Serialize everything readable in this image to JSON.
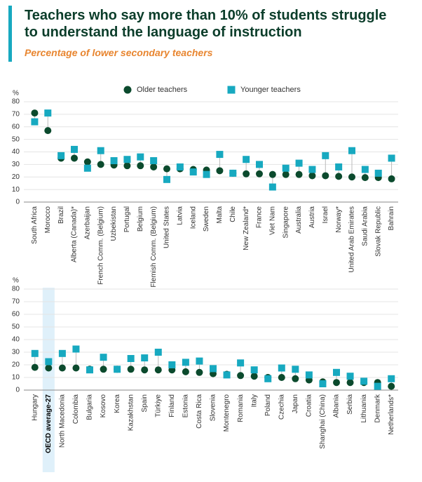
{
  "header": {
    "title": "Teachers who say more than 10% of students struggle to understand the language of instruction",
    "subtitle": "Percentage of lower secondary teachers"
  },
  "chart_data": [
    {
      "type": "dot",
      "ylabel": "%",
      "ylim": [
        0,
        80
      ],
      "yticks": [
        0,
        10,
        20,
        30,
        40,
        50,
        60,
        70,
        80
      ],
      "grid": true,
      "legend": "top",
      "categories": [
        "South Africa",
        "Morocco",
        "Brazil",
        "Alberta (Canada)*",
        "Azerbaijan",
        "French Comm. (Belgium)",
        "Uzbekistan",
        "Portugal",
        "Belgium",
        "Flemish Comm. (Belgium)",
        "United States",
        "Latvia",
        "Iceland",
        "Sweden",
        "Malta",
        "Chile",
        "New Zealand*",
        "France",
        "Viet Nam",
        "Singapore",
        "Australia",
        "Austria",
        "Israel",
        "Norway*",
        "United Arab Emirates",
        "Saudi Arabia",
        "Slovak Republic",
        "Bahrain"
      ],
      "series": [
        {
          "name": "Older teachers",
          "color": "#0b4a2d",
          "values": [
            71,
            57,
            35,
            35,
            32,
            30,
            29.5,
            29,
            29,
            28,
            26.5,
            26.5,
            26,
            25.5,
            25,
            23,
            22.5,
            22.5,
            22,
            22,
            22,
            21,
            21,
            20.5,
            20,
            19.5,
            19.5,
            18.5
          ]
        },
        {
          "name": "Younger teachers",
          "color": "#17a9c0",
          "values": [
            64,
            71,
            37,
            42,
            27,
            41,
            33,
            34,
            36,
            33,
            18,
            28,
            24,
            22,
            38,
            23,
            34,
            30,
            12,
            27,
            31,
            26,
            37,
            28,
            41,
            26,
            23,
            35
          ]
        }
      ]
    },
    {
      "type": "dot",
      "ylabel": "%",
      "ylim": [
        0,
        80
      ],
      "yticks": [
        0,
        10,
        20,
        30,
        40,
        50,
        60,
        70,
        80
      ],
      "grid": true,
      "highlight": 1,
      "categories": [
        "Hungary",
        "OECD average-27",
        "North Macedonia",
        "Colombia",
        "Bulgaria",
        "Kosovo",
        "Korea",
        "Kazakhstan",
        "Spain",
        "Türkiye",
        "Finland",
        "Estonia",
        "Costa Rica",
        "Slovenia",
        "Montenegro",
        "Romania",
        "Italy",
        "Poland",
        "Czechia",
        "Japan",
        "Croatia",
        "Shanghai (China)",
        "Albania",
        "Serbia",
        "Lithuania",
        "Denmark",
        "Netherlands*"
      ],
      "series": [
        {
          "color": "#0b4a2d",
          "values": [
            18,
            17.5,
            17.5,
            17.5,
            16.5,
            16.5,
            16.5,
            16.5,
            16,
            16,
            16,
            14.5,
            14,
            13,
            12.5,
            11.5,
            11,
            10,
            10,
            9,
            8,
            6.5,
            6,
            6,
            6,
            6,
            3
          ]
        },
        {
          "color": "#17a9c0",
          "values": [
            29,
            22.5,
            29,
            32.5,
            16,
            26,
            16.5,
            25,
            25.5,
            30,
            20,
            22,
            23,
            17,
            12,
            21.5,
            16,
            9,
            17.5,
            16.5,
            12,
            5,
            14,
            11,
            7,
            3,
            9
          ]
        }
      ]
    }
  ]
}
